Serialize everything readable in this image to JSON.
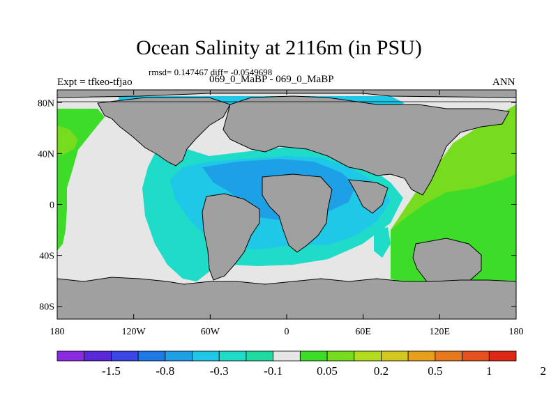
{
  "figure": {
    "title": "Ocean Salinity at 2116m (in PSU)",
    "stats": "rmsd= 0.147467 diff= -0.0549698",
    "experiment": "Expt = tfkeo-tfjao",
    "comparison": "069_0_MaBP - 069_0_MaBP",
    "season": "ANN"
  },
  "map": {
    "projection": "cylindrical-equidistant",
    "lon_range": [
      -180,
      180
    ],
    "lat_range": [
      -90,
      90
    ],
    "land_color": "#a0a0a0",
    "lat_ticks": [
      {
        "lat": 80,
        "label": "80N"
      },
      {
        "lat": 40,
        "label": "40N"
      },
      {
        "lat": 0,
        "label": "0"
      },
      {
        "lat": -40,
        "label": "40S"
      },
      {
        "lat": -80,
        "label": "80S"
      }
    ],
    "lon_ticks": [
      {
        "lon": -180,
        "label": "180"
      },
      {
        "lon": -120,
        "label": "120W"
      },
      {
        "lon": -60,
        "label": "60W"
      },
      {
        "lon": 0,
        "label": "0"
      },
      {
        "lon": 60,
        "label": "60E"
      },
      {
        "lon": 120,
        "label": "120E"
      },
      {
        "lon": 180,
        "label": "180"
      }
    ]
  },
  "colorbar": {
    "colors": [
      "#8a2be2",
      "#5a28d8",
      "#3c46e6",
      "#1e78e6",
      "#1ea0e6",
      "#1ec8e6",
      "#1edcc8",
      "#1edca0",
      "#e6e6e6",
      "#3cdc28",
      "#78dc1e",
      "#b4dc1e",
      "#d2c81e",
      "#e6a01e",
      "#e6781e",
      "#e6501e",
      "#dc2814"
    ],
    "labels": [
      "-1.5",
      "-0.8",
      "-0.3",
      "-0.1",
      "0.05",
      "0.2",
      "0.5",
      "1",
      "2"
    ]
  }
}
